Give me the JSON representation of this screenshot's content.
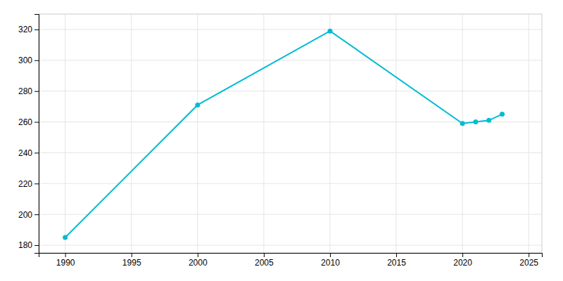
{
  "chart_data": {
    "type": "line",
    "x": [
      1990,
      2000,
      2010,
      2020,
      2021,
      2022,
      2023
    ],
    "values": [
      185,
      271,
      319,
      259,
      260,
      261,
      265
    ],
    "color": "#00bcd4",
    "marker": "circle",
    "xlim": [
      1988,
      2026
    ],
    "ylim": [
      175,
      330
    ],
    "xticks": [
      1990,
      1995,
      2000,
      2005,
      2010,
      2015,
      2020,
      2025
    ],
    "yticks": [
      180,
      200,
      220,
      240,
      260,
      280,
      300,
      320
    ],
    "grid": true
  }
}
